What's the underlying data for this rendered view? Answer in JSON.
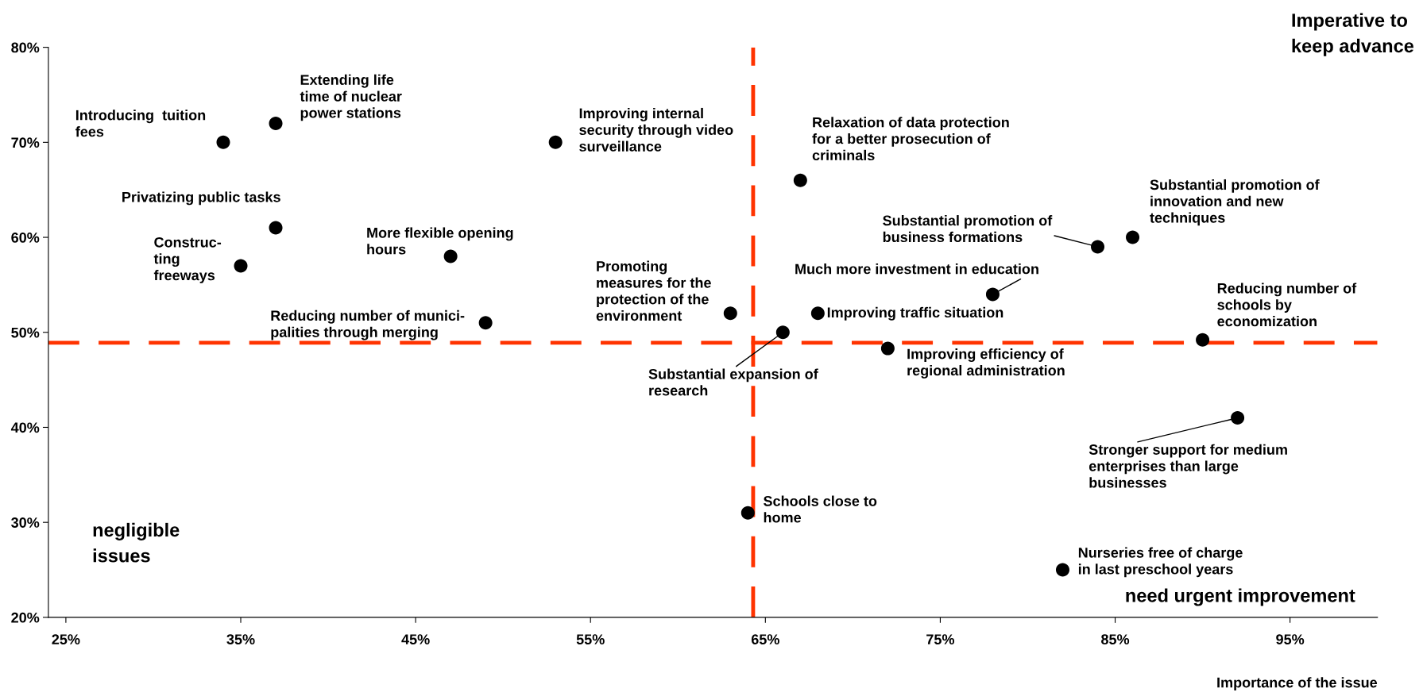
{
  "chart_data": {
    "type": "scatter",
    "xlabel": "Importance of the issue",
    "x": [
      34,
      37,
      37,
      35,
      47,
      49,
      53,
      63,
      66,
      64,
      67,
      68,
      72,
      78,
      84,
      86,
      90,
      92,
      82
    ],
    "values": [
      70,
      72,
      61,
      57,
      58,
      51,
      70,
      52,
      50,
      31,
      66,
      52,
      48.3,
      54,
      59,
      60,
      49.2,
      41,
      25
    ],
    "color": "#000000",
    "marker": "circle",
    "xlim": [
      24,
      100
    ],
    "xticks": [
      {
        "value": 25,
        "label": "25%"
      },
      {
        "value": 35,
        "label": "35%"
      },
      {
        "value": 45,
        "label": "45%"
      },
      {
        "value": 55,
        "label": "55%"
      },
      {
        "value": 65,
        "label": "65%"
      },
      {
        "value": 75,
        "label": "75%"
      },
      {
        "value": 85,
        "label": "85%"
      },
      {
        "value": 95,
        "label": "95%"
      }
    ],
    "ylim": [
      20,
      80
    ],
    "yticks": [
      {
        "value": 20,
        "label": "20%"
      },
      {
        "value": 30,
        "label": "30%"
      },
      {
        "value": 40,
        "label": "40%"
      },
      {
        "value": 50,
        "label": "50%"
      },
      {
        "value": 60,
        "label": "60%"
      },
      {
        "value": 70,
        "label": "70%"
      },
      {
        "value": 80,
        "label": "80%"
      }
    ],
    "grid": false,
    "legend": false,
    "ref_lines": [
      {
        "axis": "x",
        "value": 64.3,
        "color": "#ff3300",
        "line_style": "dashed"
      },
      {
        "axis": "y",
        "value": 48.9,
        "color": "#ff3300",
        "line_style": "dashed"
      }
    ],
    "annotations": [
      {
        "text": "Introducing  tuition\nfees",
        "x": 34,
        "y": 70
      },
      {
        "text": "Extending life\ntime of nuclear\npower stations",
        "x": 37,
        "y": 72
      },
      {
        "text": "Privatizing public tasks",
        "x": 37,
        "y": 61
      },
      {
        "text": "Construc-\nting\nfreeways",
        "x": 35,
        "y": 57
      },
      {
        "text": "More flexible opening\nhours",
        "x": 47,
        "y": 58
      },
      {
        "text": "Reducing number of munici-\npalities through merging",
        "x": 49,
        "y": 51
      },
      {
        "text": "Improving internal\nsecurity through video\nsurveillance",
        "x": 53,
        "y": 70
      },
      {
        "text": "Promoting\nmeasures for the\nprotection of the\nenvironment",
        "x": 63,
        "y": 52
      },
      {
        "text": "Substantial expansion of\nresearch",
        "x": 66,
        "y": 50
      },
      {
        "text": "Schools close to\nhome",
        "x": 64,
        "y": 31
      },
      {
        "text": "Relaxation of data protection\nfor a better prosecution of\ncriminals",
        "x": 67,
        "y": 66
      },
      {
        "text": "Improving traffic situation",
        "x": 68,
        "y": 52
      },
      {
        "text": "Improving efficiency of\nregional administration",
        "x": 72,
        "y": 48.3
      },
      {
        "text": "Much more investment in education",
        "x": 78,
        "y": 54
      },
      {
        "text": "Substantial promotion of\nbusiness formations",
        "x": 84,
        "y": 59
      },
      {
        "text": "Substantial promotion of\ninnovation and new\ntechniques",
        "x": 86,
        "y": 60
      },
      {
        "text": "Reducing number of\nschools by\neconomization",
        "x": 90,
        "y": 49.2
      },
      {
        "text": "Stronger support for medium\nenterprises than large\nbusinesses",
        "x": 92,
        "y": 41
      },
      {
        "text": "Nurseries free of charge\nin last preschool years",
        "x": 82,
        "y": 25
      },
      "Imperative to\nkeep advance",
      "negligible\nissues",
      "need urgent improvement"
    ]
  }
}
